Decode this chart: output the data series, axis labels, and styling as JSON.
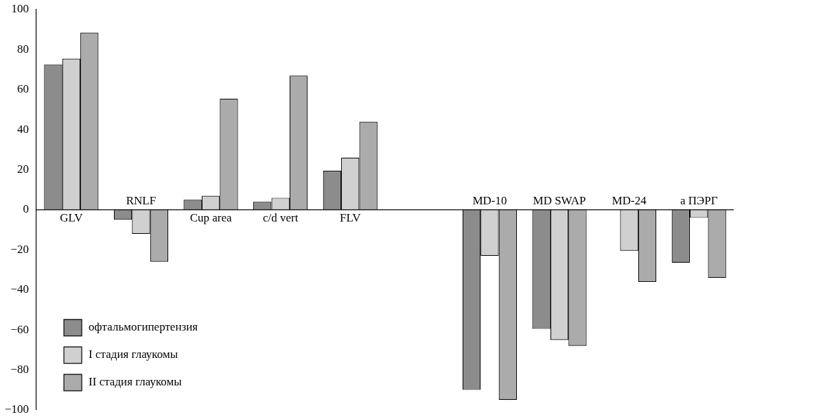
{
  "chart_data": {
    "type": "bar",
    "categories": [
      "GLV",
      "RNLF",
      "Cup area",
      "c/d vert",
      "FLV",
      null,
      "MD-10",
      "MD SWAP",
      "MD-24",
      "а ПЭРГ"
    ],
    "series": [
      {
        "name": "офтальмогипертензия",
        "color": "#8c8c8c",
        "values": [
          72.5,
          -5,
          5,
          4,
          19.5,
          null,
          -90,
          -59.5,
          null,
          -26.5
        ]
      },
      {
        "name": "I стадия глаукомы",
        "color": "#d0d0d0",
        "values": [
          75.5,
          -12,
          7,
          6,
          26,
          null,
          -23,
          -65,
          -20.5,
          -4
        ]
      },
      {
        "name": "II стадия глаукомы",
        "color": "#ababab",
        "values": [
          88.5,
          -26,
          55.5,
          67,
          44,
          null,
          -95,
          -68,
          -36,
          -34
        ]
      }
    ],
    "ylim": [
      -100,
      100
    ],
    "yticks": [
      -100,
      -80,
      -60,
      -40,
      -20,
      0,
      20,
      40,
      60,
      80,
      100
    ],
    "grid": false,
    "legend": "bottom left"
  }
}
